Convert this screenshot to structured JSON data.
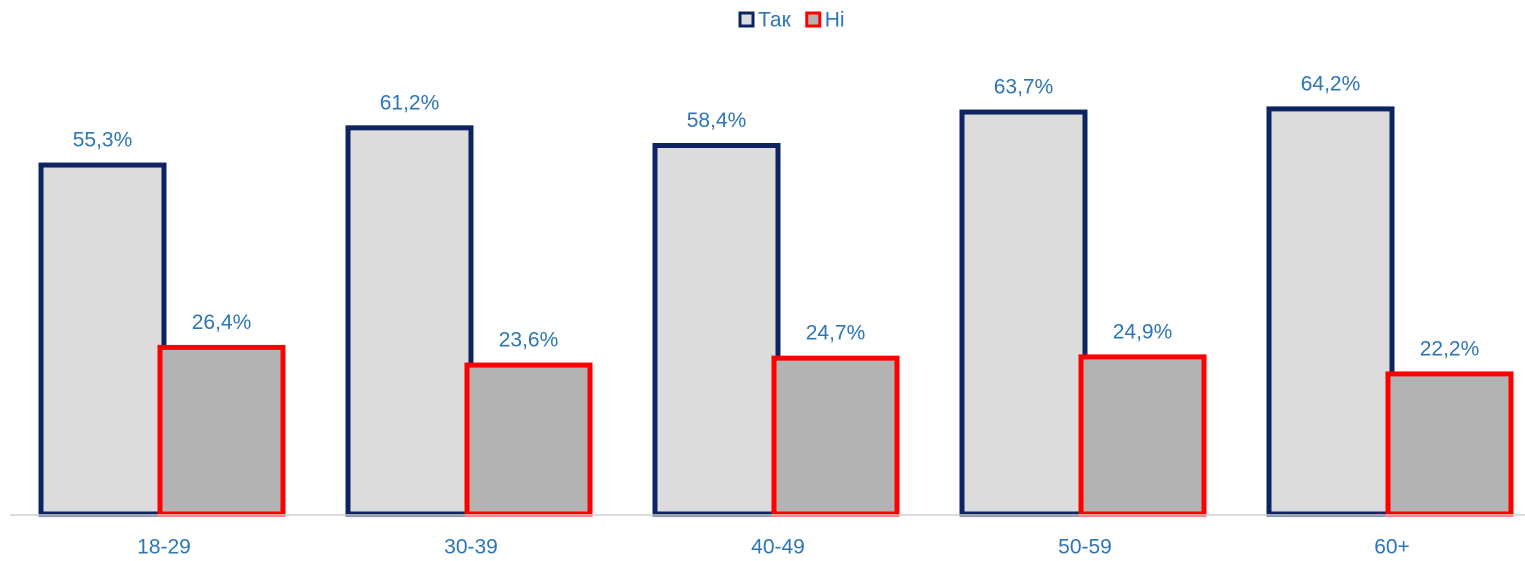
{
  "chart_data": {
    "type": "bar",
    "categories": [
      "18-29",
      "30-39",
      "40-49",
      "50-59",
      "60+"
    ],
    "series": [
      {
        "name": "Так",
        "color": "#dcdcdc",
        "edge": "#0d2461",
        "values": [
          55.3,
          61.2,
          58.4,
          63.7,
          64.2
        ],
        "value_labels": [
          "55,3%",
          "61,2%",
          "58,4%",
          "63,7%",
          "64,2%"
        ]
      },
      {
        "name": "Ні",
        "color": "#b3b3b3",
        "edge": "#ff0000",
        "values": [
          26.4,
          23.6,
          24.7,
          24.9,
          22.2
        ],
        "value_labels": [
          "26,4%",
          "23,6%",
          "24,7%",
          "24,9%",
          "22,2%"
        ]
      }
    ],
    "legend": "top"
  }
}
